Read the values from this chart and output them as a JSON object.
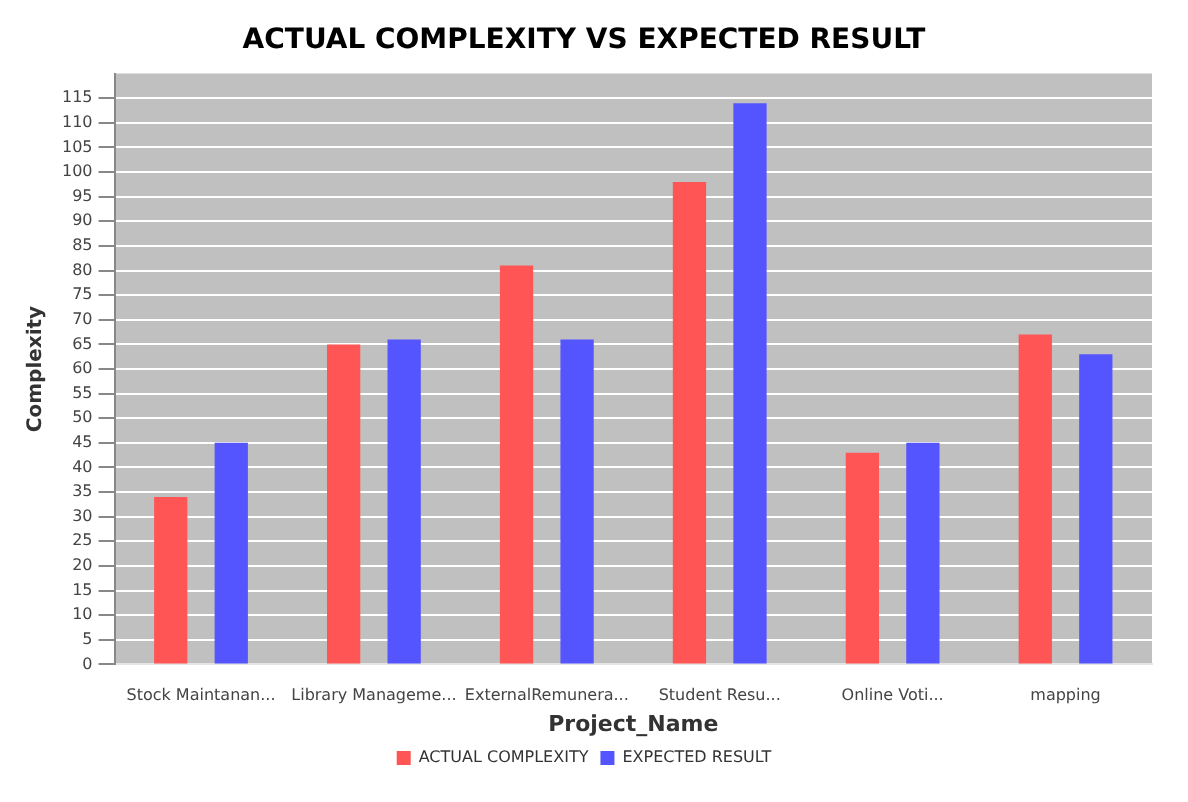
{
  "chart_data": {
    "type": "bar",
    "title": "ACTUAL COMPLEXITY VS EXPECTED RESULT",
    "xlabel": "Project_Name",
    "ylabel": "Complexity",
    "categories": [
      "Stock Maintanan...",
      "Library Manageme...",
      "ExternalRemunera...",
      "Student Resu...",
      "Online Voti...",
      "mapping"
    ],
    "series": [
      {
        "name": "ACTUAL COMPLEXITY",
        "color": "#ff5555",
        "values": [
          34,
          65,
          81,
          98,
          43,
          67
        ]
      },
      {
        "name": "EXPECTED RESULT",
        "color": "#5555ff",
        "values": [
          45,
          66,
          66,
          114,
          45,
          63
        ]
      }
    ],
    "ylim": [
      0,
      120
    ],
    "yticks": [
      0,
      5,
      10,
      15,
      20,
      25,
      30,
      35,
      40,
      45,
      50,
      55,
      60,
      65,
      70,
      75,
      80,
      85,
      90,
      95,
      100,
      105,
      110,
      115
    ],
    "grid": "y",
    "legend": "bottom"
  }
}
